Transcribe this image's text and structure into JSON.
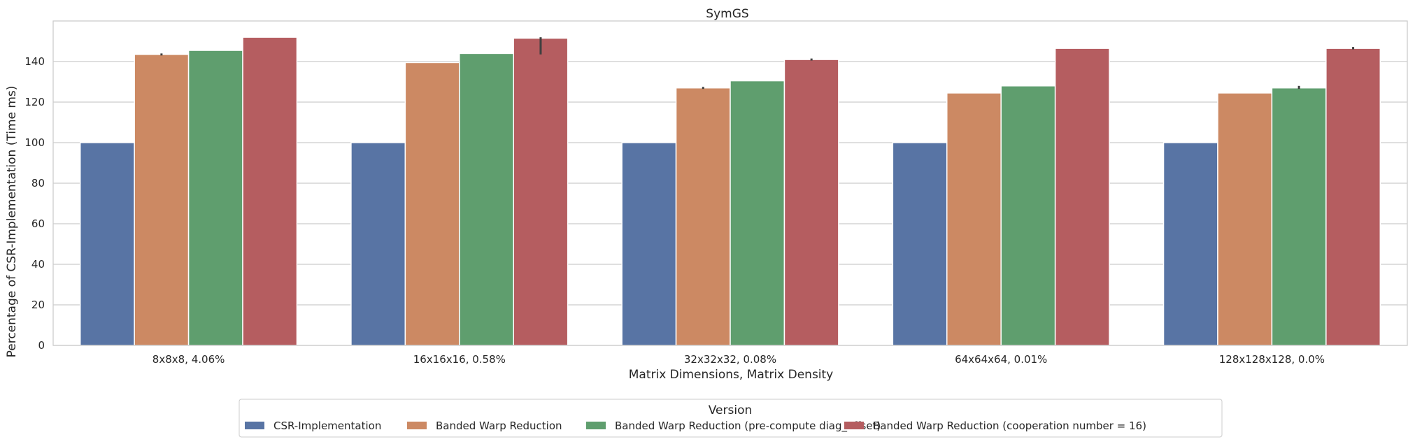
{
  "chart_data": {
    "type": "bar",
    "title": "SymGS",
    "xlabel": "Matrix Dimensions, Matrix Density",
    "ylabel": "Percentage of CSR-Implementation (Time ms)",
    "ylim": [
      0,
      160
    ],
    "yticks": [
      0,
      20,
      40,
      60,
      80,
      100,
      120,
      140
    ],
    "grid": true,
    "categories": [
      "8x8x8, 4.06%",
      "16x16x16, 0.58%",
      "32x32x32, 0.08%",
      "64x64x64, 0.01%",
      "128x128x128, 0.0%"
    ],
    "legend_title": "Version",
    "legend_position": "bottom-center",
    "series": [
      {
        "name": "CSR-Implementation",
        "color": "#5874a4",
        "values": [
          100,
          100,
          100,
          100,
          100
        ],
        "errors": [
          [
            0,
            0
          ],
          [
            0,
            0
          ],
          [
            0,
            0
          ],
          [
            0,
            0
          ],
          [
            0,
            0
          ]
        ]
      },
      {
        "name": "Banded Warp Reduction",
        "color": "#cc8963",
        "values": [
          143.5,
          139.5,
          127,
          124.5,
          124.5
        ],
        "errors": [
          [
            143,
            144
          ],
          [
            0,
            0
          ],
          [
            126.5,
            127.5
          ],
          [
            0,
            0
          ],
          [
            0,
            0
          ]
        ]
      },
      {
        "name": "Banded Warp Reduction (pre-compute diag_offset)",
        "color": "#5f9e6e",
        "values": [
          145.5,
          144,
          130.5,
          128,
          127
        ],
        "errors": [
          [
            0,
            0
          ],
          [
            0,
            0
          ],
          [
            0,
            0
          ],
          [
            0,
            0
          ],
          [
            126.5,
            128
          ]
        ]
      },
      {
        "name": "Banded Warp Reduction (cooperation number = 16)",
        "color": "#b55d60",
        "values": [
          152,
          151.5,
          141,
          146.5,
          146.5
        ],
        "errors": [
          [
            0,
            0
          ],
          [
            143.5,
            152
          ],
          [
            140.5,
            141.5
          ],
          [
            0,
            0
          ],
          [
            146,
            147.2
          ]
        ]
      }
    ]
  }
}
